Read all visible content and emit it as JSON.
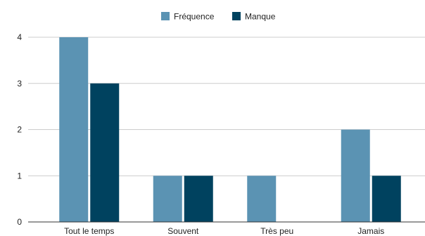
{
  "chart_data": {
    "type": "bar",
    "title": "",
    "xlabel": "",
    "ylabel": "",
    "categories": [
      "Tout le temps",
      "Souvent",
      "Très peu",
      "Jamais"
    ],
    "series": [
      {
        "name": "Fréquence",
        "color": "#5b93b3",
        "values": [
          4,
          1,
          1,
          2
        ]
      },
      {
        "name": "Manque",
        "color": "#00425f",
        "values": [
          3,
          1,
          0,
          1
        ]
      }
    ],
    "ylim": [
      0,
      4
    ],
    "yticks": [
      0,
      1,
      2,
      3,
      4
    ],
    "grid": true,
    "legend_position": "top-center"
  }
}
